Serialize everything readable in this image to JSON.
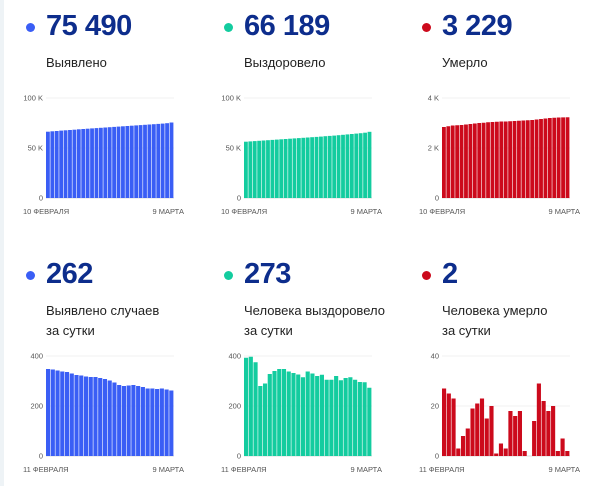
{
  "colors": {
    "blue": "#3a5ef5",
    "green": "#13cc9f",
    "red": "#cc0a1c",
    "number": "#0d2d8c"
  },
  "cards": [
    {
      "value": "75 490",
      "label1": "Выявлено",
      "label2": "",
      "color": "#3a5ef5"
    },
    {
      "value": "66 189",
      "label1": "Выздоровело",
      "label2": "",
      "color": "#13cc9f"
    },
    {
      "value": "3 229",
      "label1": "Умерло",
      "label2": "",
      "color": "#cc0a1c"
    },
    {
      "value": "262",
      "label1": "Выявлено случаев",
      "label2": "за сутки",
      "color": "#3a5ef5"
    },
    {
      "value": "273",
      "label1": "Человека выздоровело",
      "label2": "за сутки",
      "color": "#13cc9f"
    },
    {
      "value": "2",
      "label1": "Человека умерло",
      "label2": "за сутки",
      "color": "#cc0a1c"
    }
  ],
  "chart_data": [
    {
      "type": "bar",
      "title": "Выявлено",
      "xstart": "10 ФЕВРАЛЯ",
      "xend": "9 МАРТА",
      "yticks": [
        "0",
        "50 K",
        "100 K"
      ],
      "ylim": [
        0,
        100000
      ],
      "color": "#3a5ef5",
      "values": [
        66300,
        66700,
        67000,
        67400,
        67700,
        68000,
        68300,
        68700,
        69000,
        69300,
        69600,
        69900,
        70200,
        70500,
        70800,
        71100,
        71400,
        71700,
        72000,
        72300,
        72600,
        72900,
        73200,
        73500,
        73800,
        74100,
        74400,
        74800,
        75490
      ]
    },
    {
      "type": "bar",
      "title": "Выздоровело",
      "xstart": "10 ФЕВРАЛЯ",
      "xend": "9 МАРТА",
      "yticks": [
        "0",
        "50 K",
        "100 K"
      ],
      "ylim": [
        0,
        100000
      ],
      "color": "#13cc9f",
      "values": [
        56300,
        56600,
        56900,
        57200,
        57500,
        57800,
        58100,
        58400,
        58700,
        59000,
        59300,
        59600,
        59900,
        60200,
        60500,
        60800,
        61100,
        61400,
        61800,
        62100,
        62400,
        62800,
        63200,
        63600,
        64000,
        64400,
        64800,
        65300,
        66189
      ]
    },
    {
      "type": "bar",
      "title": "Умерло",
      "xstart": "10 ФЕВРАЛЯ",
      "xend": "9 МАРТА",
      "yticks": [
        "0",
        "2 K",
        "4 K"
      ],
      "ylim": [
        0,
        4000
      ],
      "color": "#cc0a1c",
      "values": [
        2840,
        2870,
        2900,
        2910,
        2920,
        2940,
        2960,
        2980,
        3000,
        3010,
        3030,
        3040,
        3050,
        3060,
        3060,
        3070,
        3080,
        3090,
        3100,
        3110,
        3120,
        3140,
        3160,
        3180,
        3200,
        3210,
        3220,
        3225,
        3229
      ]
    },
    {
      "type": "bar",
      "title": "Выявлено случаев за сутки",
      "xstart": "11 ФЕВРАЛЯ",
      "xend": "9 МАРТА",
      "yticks": [
        "0",
        "200",
        "400"
      ],
      "ylim": [
        0,
        400
      ],
      "color": "#3a5ef5",
      "values": [
        348,
        346,
        342,
        338,
        336,
        330,
        324,
        322,
        318,
        316,
        316,
        312,
        308,
        302,
        294,
        284,
        280,
        282,
        284,
        280,
        276,
        270,
        270,
        268,
        270,
        266,
        262
      ]
    },
    {
      "type": "bar",
      "title": "Человека выздоровело за сутки",
      "xstart": "11 ФЕВРАЛЯ",
      "xend": "9 МАРТА",
      "yticks": [
        "0",
        "200",
        "400"
      ],
      "ylim": [
        0,
        400
      ],
      "color": "#13cc9f",
      "values": [
        393,
        397,
        375,
        280,
        290,
        328,
        340,
        348,
        348,
        338,
        332,
        326,
        315,
        338,
        330,
        320,
        325,
        305,
        305,
        320,
        303,
        312,
        315,
        305,
        296,
        295,
        273
      ]
    },
    {
      "type": "bar",
      "title": "Человека умерло за сутки",
      "xstart": "11 ФЕВРАЛЯ",
      "xend": "9 МАРТА",
      "yticks": [
        "0",
        "20",
        "40"
      ],
      "ylim": [
        0,
        40
      ],
      "color": "#cc0a1c",
      "values": [
        27,
        25,
        23,
        3,
        8,
        11,
        19,
        21,
        23,
        15,
        20,
        1,
        5,
        3,
        18,
        16,
        18,
        2,
        0,
        14,
        29,
        22,
        18,
        20,
        2,
        7,
        2
      ]
    }
  ]
}
